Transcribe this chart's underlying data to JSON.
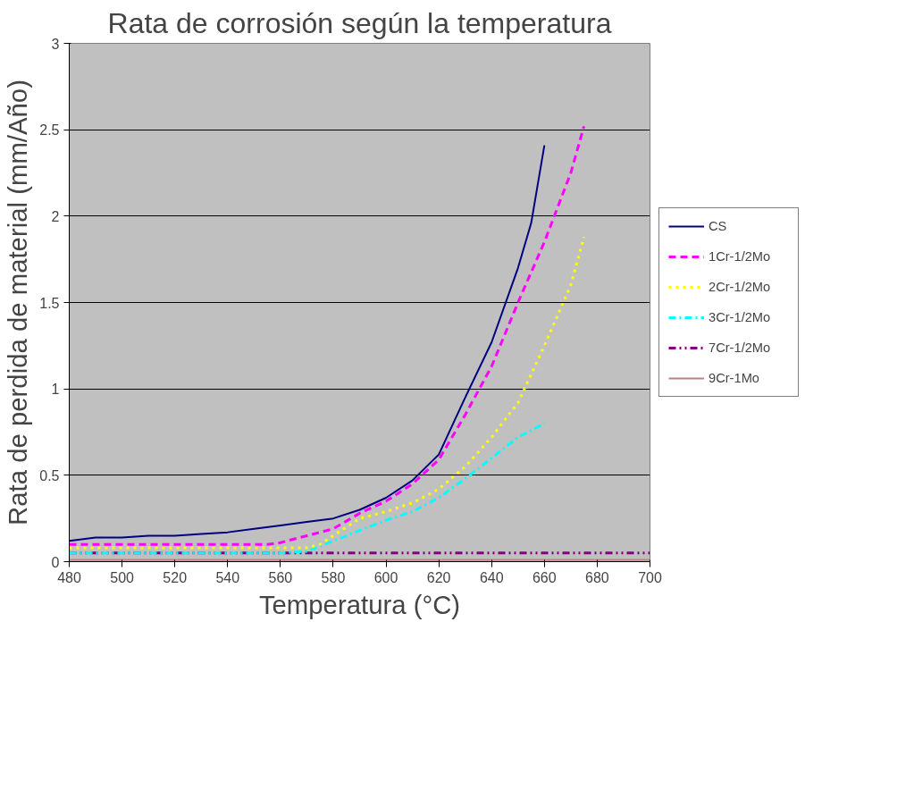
{
  "chart_data": {
    "type": "line",
    "title": "Rata de corrosión según la temperatura",
    "xlabel": "Temperatura (°C)",
    "ylabel": "Rata de perdida de material (mm/Año)",
    "xlim": [
      480,
      700
    ],
    "xticks": [
      480,
      500,
      520,
      540,
      560,
      580,
      600,
      620,
      640,
      660,
      680,
      700
    ],
    "ylim": [
      0,
      3
    ],
    "yticks": [
      0,
      0.5,
      1,
      1.5,
      2,
      2.5,
      3
    ],
    "grid": "y",
    "legend": "right",
    "series": [
      {
        "name": "CS",
        "color": "#000080",
        "line_style": "solid",
        "x": [
          480,
          490,
          500,
          510,
          520,
          530,
          540,
          550,
          560,
          570,
          580,
          590,
          600,
          610,
          620,
          630,
          640,
          650,
          655,
          660
        ],
        "values": [
          0.12,
          0.14,
          0.14,
          0.15,
          0.15,
          0.16,
          0.17,
          0.19,
          0.21,
          0.23,
          0.25,
          0.3,
          0.37,
          0.47,
          0.62,
          0.95,
          1.27,
          1.7,
          1.96,
          2.41
        ]
      },
      {
        "name": "1Cr-1/2Mo",
        "color": "#ff00ff",
        "line_style": "dashed",
        "x": [
          480,
          500,
          520,
          540,
          555,
          560,
          570,
          580,
          590,
          600,
          610,
          620,
          630,
          640,
          650,
          660,
          670,
          675
        ],
        "values": [
          0.1,
          0.1,
          0.1,
          0.1,
          0.1,
          0.11,
          0.15,
          0.19,
          0.28,
          0.35,
          0.45,
          0.59,
          0.85,
          1.13,
          1.5,
          1.85,
          2.25,
          2.52
        ]
      },
      {
        "name": "2Cr-1/2Mo",
        "color": "#ffff00",
        "line_style": "dotted",
        "x": [
          480,
          500,
          520,
          540,
          560,
          570,
          575,
          590,
          600,
          610,
          620,
          630,
          640,
          650,
          660,
          670,
          675
        ],
        "values": [
          0.08,
          0.08,
          0.08,
          0.08,
          0.08,
          0.08,
          0.1,
          0.25,
          0.29,
          0.34,
          0.42,
          0.55,
          0.72,
          0.92,
          1.25,
          1.6,
          1.88
        ]
      },
      {
        "name": "3Cr-1/2Mo",
        "color": "#00ffff",
        "line_style": "dashdot",
        "x": [
          480,
          500,
          520,
          540,
          560,
          570,
          580,
          590,
          600,
          610,
          620,
          630,
          640,
          650,
          660
        ],
        "values": [
          0.05,
          0.05,
          0.05,
          0.05,
          0.05,
          0.06,
          0.12,
          0.18,
          0.24,
          0.29,
          0.37,
          0.48,
          0.6,
          0.72,
          0.8
        ]
      },
      {
        "name": "7Cr-1/2Mo",
        "color": "#800080",
        "line_style": "dashdotdot",
        "x": [
          480,
          700
        ],
        "values": [
          0.05,
          0.05
        ]
      },
      {
        "name": "9Cr-1Mo",
        "color": "#c08080",
        "line_style": "solid",
        "x": [
          480,
          700
        ],
        "values": [
          0.01,
          0.01
        ]
      }
    ]
  }
}
